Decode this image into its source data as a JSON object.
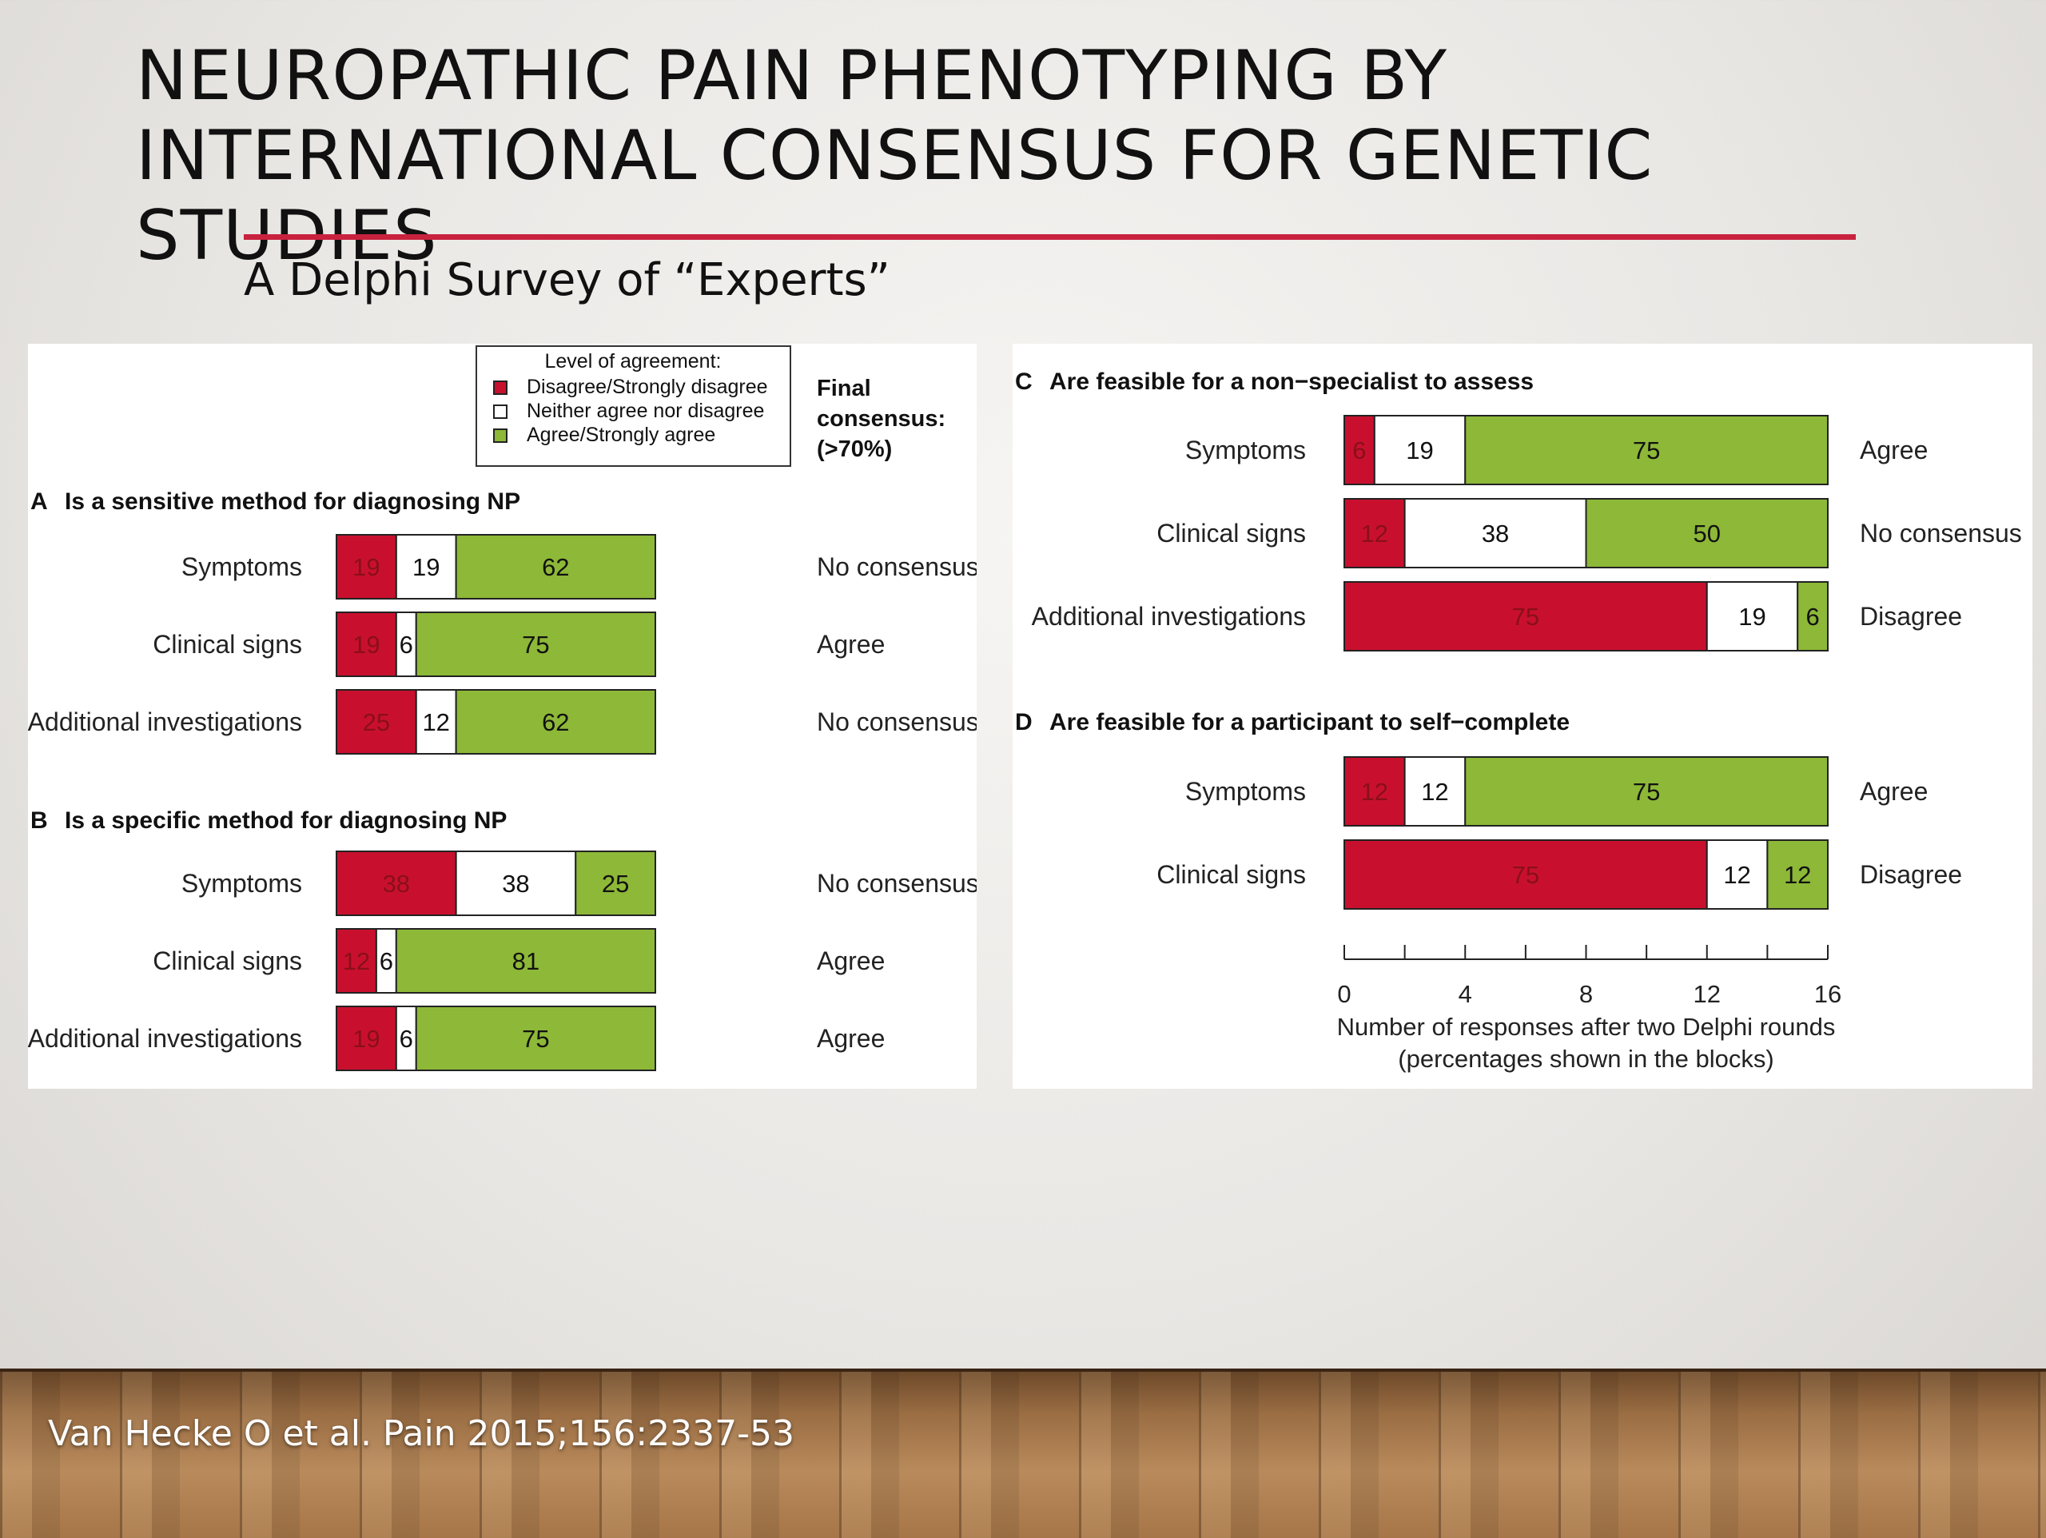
{
  "slide": {
    "title_line1": "NEUROPATHIC PAIN PHENOTYPING BY",
    "title_line2": "INTERNATIONAL CONSENSUS FOR GENETIC STUDIES",
    "subtitle": "A Delphi Survey of “Experts”",
    "citation": "Van Hecke O et al. Pain 2015;156:2337-53"
  },
  "legend": {
    "title": "Level of agreement:",
    "items": [
      {
        "label": "Disagree/Strongly disagree",
        "color": "#c8102e"
      },
      {
        "label": "Neither agree nor disagree",
        "color": "#ffffff"
      },
      {
        "label": "Agree/Strongly agree",
        "color": "#8db838"
      }
    ],
    "consensus_header": [
      "Final",
      "consensus:",
      "(>70%)"
    ]
  },
  "colors": {
    "disagree": "#c8102e",
    "neither": "#ffffff",
    "agree": "#8db838",
    "disagree_text": "#8a0f18"
  },
  "chart_data": [
    {
      "type": "bar",
      "stacked": true,
      "orientation": "horizontal",
      "panel": "A",
      "title": "Is a sensitive method for diagnosing NP",
      "xmax": 16,
      "rows": [
        {
          "label": "Symptoms",
          "counts": [
            3,
            3,
            10
          ],
          "pct": [
            "19",
            "19",
            "62"
          ],
          "consensus": "No consensus"
        },
        {
          "label": "Clinical signs",
          "counts": [
            3,
            1,
            12
          ],
          "pct": [
            "19",
            "6",
            "75"
          ],
          "consensus": "Agree"
        },
        {
          "label": "Additional investigations",
          "counts": [
            4,
            2,
            10
          ],
          "pct": [
            "25",
            "12",
            "62"
          ],
          "consensus": "No consensus"
        }
      ]
    },
    {
      "type": "bar",
      "stacked": true,
      "orientation": "horizontal",
      "panel": "B",
      "title": "Is a specific method for diagnosing NP",
      "xmax": 16,
      "rows": [
        {
          "label": "Symptoms",
          "counts": [
            6,
            6,
            4
          ],
          "pct": [
            "38",
            "38",
            "25"
          ],
          "consensus": "No consensus"
        },
        {
          "label": "Clinical signs",
          "counts": [
            2,
            1,
            13
          ],
          "pct": [
            "12",
            "6",
            "81"
          ],
          "consensus": "Agree"
        },
        {
          "label": "Additional investigations",
          "counts": [
            3,
            1,
            12
          ],
          "pct": [
            "19",
            "6",
            "75"
          ],
          "consensus": "Agree"
        }
      ]
    },
    {
      "type": "bar",
      "stacked": true,
      "orientation": "horizontal",
      "panel": "C",
      "title": "Are feasible for a non−specialist to assess",
      "xmax": 16,
      "rows": [
        {
          "label": "Symptoms",
          "counts": [
            1,
            3,
            12
          ],
          "pct": [
            "6",
            "19",
            "75"
          ],
          "consensus": "Agree"
        },
        {
          "label": "Clinical signs",
          "counts": [
            2,
            6,
            8
          ],
          "pct": [
            "12",
            "38",
            "50"
          ],
          "consensus": "No consensus"
        },
        {
          "label": "Additional investigations",
          "counts": [
            12,
            3,
            1
          ],
          "pct": [
            "75",
            "19",
            "6"
          ],
          "consensus": "Disagree"
        }
      ]
    },
    {
      "type": "bar",
      "stacked": true,
      "orientation": "horizontal",
      "panel": "D",
      "title": "Are feasible for a participant to self−complete",
      "xmax": 16,
      "rows": [
        {
          "label": "Symptoms",
          "counts": [
            2,
            2,
            12
          ],
          "pct": [
            "12",
            "12",
            "75"
          ],
          "consensus": "Agree"
        },
        {
          "label": "Clinical signs",
          "counts": [
            12,
            2,
            2
          ],
          "pct": [
            "75",
            "12",
            "12"
          ],
          "consensus": "Disagree"
        }
      ],
      "axis": {
        "ticks": [
          0,
          2,
          4,
          6,
          8,
          10,
          12,
          14,
          16
        ],
        "tick_labels": [
          0,
          4,
          8,
          12,
          16
        ],
        "xlabel_line1": "Number of responses after two Delphi rounds",
        "xlabel_line2": "(percentages shown in the blocks)"
      }
    }
  ]
}
